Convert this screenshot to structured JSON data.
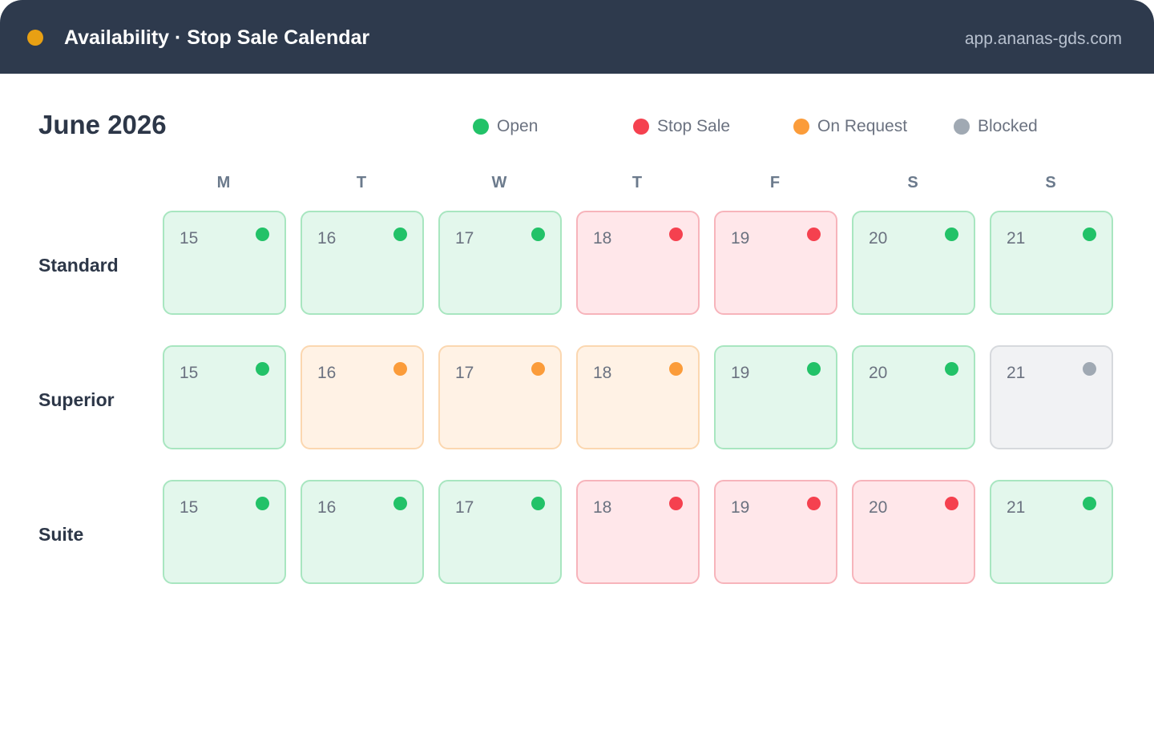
{
  "header": {
    "title": "Availability · Stop Sale Calendar",
    "url": "app.ananas-gds.com",
    "dot_color": "#e8a013"
  },
  "calendar": {
    "month": "June 2026",
    "weekdays": [
      "M",
      "T",
      "W",
      "T",
      "F",
      "S",
      "S"
    ]
  },
  "legend": [
    {
      "key": "open",
      "label": "Open",
      "color": "#22c268"
    },
    {
      "key": "stop",
      "label": "Stop Sale",
      "color": "#f5414f"
    },
    {
      "key": "request",
      "label": "On Request",
      "color": "#fb9c3a"
    },
    {
      "key": "blocked",
      "label": "Blocked",
      "color": "#a0a9b3"
    }
  ],
  "rows": [
    {
      "name": "Standard",
      "cells": [
        {
          "day": "15",
          "status": "open"
        },
        {
          "day": "16",
          "status": "open"
        },
        {
          "day": "17",
          "status": "open"
        },
        {
          "day": "18",
          "status": "stop"
        },
        {
          "day": "19",
          "status": "stop"
        },
        {
          "day": "20",
          "status": "open"
        },
        {
          "day": "21",
          "status": "open"
        }
      ]
    },
    {
      "name": "Superior",
      "cells": [
        {
          "day": "15",
          "status": "open"
        },
        {
          "day": "16",
          "status": "request"
        },
        {
          "day": "17",
          "status": "request"
        },
        {
          "day": "18",
          "status": "request"
        },
        {
          "day": "19",
          "status": "open"
        },
        {
          "day": "20",
          "status": "open"
        },
        {
          "day": "21",
          "status": "blocked"
        }
      ]
    },
    {
      "name": "Suite",
      "cells": [
        {
          "day": "15",
          "status": "open"
        },
        {
          "day": "16",
          "status": "open"
        },
        {
          "day": "17",
          "status": "open"
        },
        {
          "day": "18",
          "status": "stop"
        },
        {
          "day": "19",
          "status": "stop"
        },
        {
          "day": "20",
          "status": "stop"
        },
        {
          "day": "21",
          "status": "open"
        }
      ]
    }
  ]
}
